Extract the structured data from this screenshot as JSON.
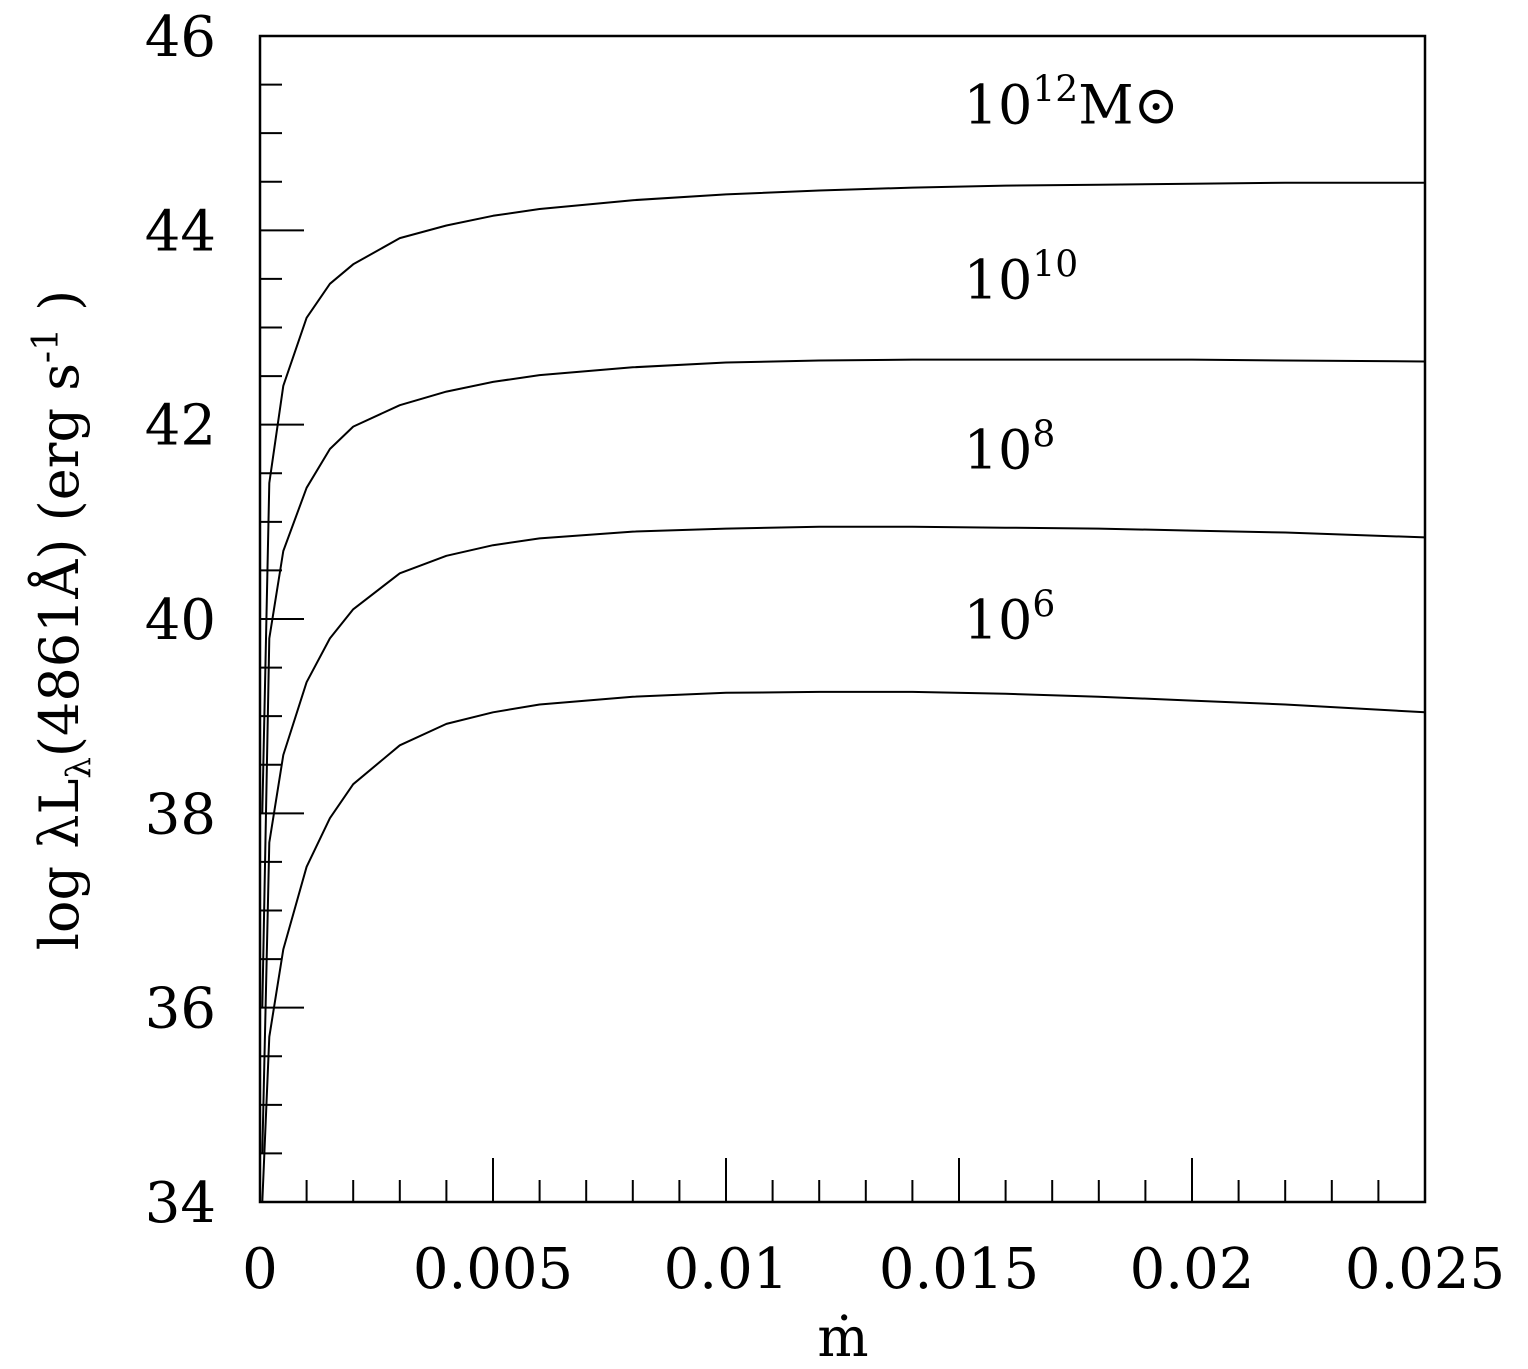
{
  "chart_data": {
    "type": "line",
    "xlabel": "ṁ",
    "ylabel": {
      "prefix": "log λL",
      "sub": "λ",
      "middle": "(4861Å) (erg s",
      "sup": "-1",
      "suffix": " )"
    },
    "xlim": [
      0,
      0.025
    ],
    "ylim": [
      34,
      46
    ],
    "xticks": [
      0,
      0.005,
      0.01,
      0.015,
      0.02,
      0.025
    ],
    "xtick_labels": [
      "0",
      "0.005",
      "0.01",
      "0.015",
      "0.02",
      "0.025"
    ],
    "x_minor_step": 0.001,
    "yticks": [
      34,
      36,
      38,
      40,
      42,
      44,
      46
    ],
    "ytick_labels": [
      "34",
      "36",
      "38",
      "40",
      "42",
      "44",
      "46"
    ],
    "y_minor_step": 0.5,
    "grid": false,
    "series": [
      {
        "name": "10^6",
        "label_base": "10",
        "label_exp": "6",
        "label_unit": "",
        "x": [
          5e-05,
          0.0002,
          0.0005,
          0.001,
          0.0015,
          0.002,
          0.003,
          0.004,
          0.005,
          0.006,
          0.008,
          0.01,
          0.012,
          0.014,
          0.016,
          0.018,
          0.02,
          0.022,
          0.025
        ],
        "y": [
          34.0,
          35.7,
          36.6,
          37.45,
          37.95,
          38.3,
          38.7,
          38.92,
          39.04,
          39.12,
          39.2,
          39.24,
          39.25,
          39.25,
          39.23,
          39.2,
          39.16,
          39.12,
          39.04
        ]
      },
      {
        "name": "10^8",
        "label_base": "10",
        "label_exp": "8",
        "label_unit": "",
        "x": [
          5e-05,
          0.0002,
          0.0005,
          0.001,
          0.0015,
          0.002,
          0.003,
          0.004,
          0.005,
          0.006,
          0.008,
          0.01,
          0.012,
          0.014,
          0.016,
          0.018,
          0.02,
          0.022,
          0.025
        ],
        "y": [
          34.5,
          37.7,
          38.6,
          39.35,
          39.8,
          40.1,
          40.47,
          40.65,
          40.76,
          40.83,
          40.9,
          40.93,
          40.95,
          40.95,
          40.94,
          40.93,
          40.91,
          40.89,
          40.84
        ]
      },
      {
        "name": "10^10",
        "label_base": "10",
        "label_exp": "10",
        "label_unit": "",
        "x": [
          5e-05,
          0.0002,
          0.0005,
          0.001,
          0.0015,
          0.002,
          0.003,
          0.004,
          0.005,
          0.006,
          0.008,
          0.01,
          0.012,
          0.014,
          0.016,
          0.018,
          0.02,
          0.022,
          0.025
        ],
        "y": [
          36.0,
          39.8,
          40.7,
          41.35,
          41.75,
          41.98,
          42.2,
          42.34,
          42.44,
          42.51,
          42.59,
          42.64,
          42.66,
          42.67,
          42.67,
          42.67,
          42.67,
          42.66,
          42.65
        ]
      },
      {
        "name": "10^12 M⊙",
        "label_base": "10",
        "label_exp": "12",
        "label_unit": "M⊙",
        "x": [
          5e-05,
          0.0002,
          0.0005,
          0.001,
          0.0015,
          0.002,
          0.003,
          0.004,
          0.005,
          0.006,
          0.008,
          0.01,
          0.012,
          0.014,
          0.016,
          0.018,
          0.02,
          0.022,
          0.025
        ],
        "y": [
          38.0,
          41.4,
          42.4,
          43.1,
          43.45,
          43.65,
          43.92,
          44.05,
          44.15,
          44.22,
          44.31,
          44.37,
          44.41,
          44.44,
          44.46,
          44.47,
          44.48,
          44.49,
          44.49
        ]
      }
    ],
    "curve_label_positions": [
      {
        "series": "10^12 M⊙",
        "x": 0.0151,
        "y": 45.1
      },
      {
        "series": "10^10",
        "x": 0.0151,
        "y": 43.3
      },
      {
        "series": "10^8",
        "x": 0.0151,
        "y": 41.55
      },
      {
        "series": "10^6",
        "x": 0.0151,
        "y": 39.8
      }
    ]
  }
}
